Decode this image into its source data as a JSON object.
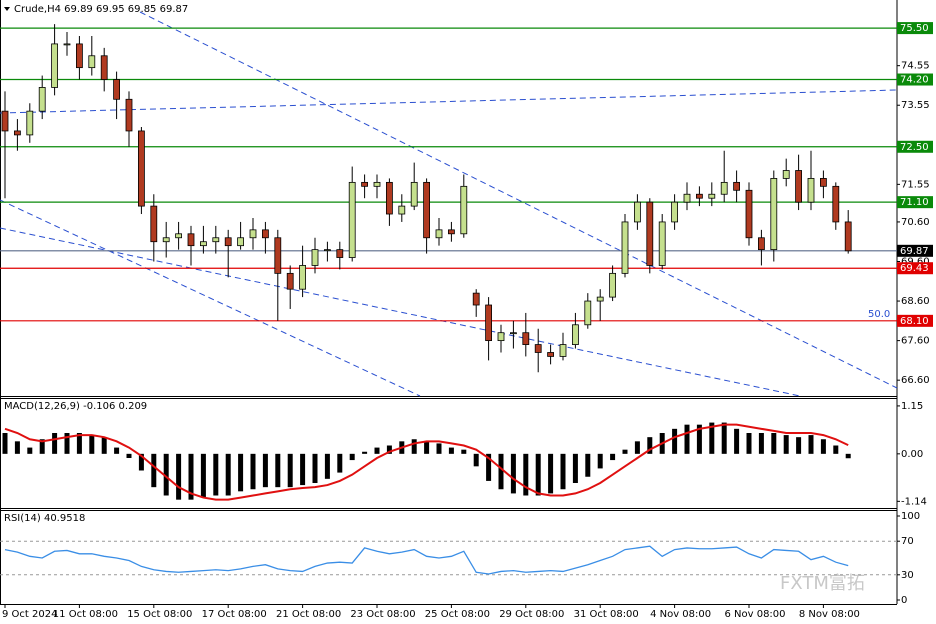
{
  "chart_data": [
    {
      "type": "candlestick",
      "title": "Crude,H4 69.89 69.95 69.85 69.87",
      "categories": [
        "9 Oct 2024",
        null,
        null,
        null,
        null,
        null,
        "11 Oct 08:00",
        null,
        null,
        null,
        null,
        null,
        "15 Oct 08:00",
        null,
        null,
        null,
        null,
        null,
        "17 Oct 08:00",
        null,
        null,
        null,
        null,
        null,
        "21 Oct 08:00",
        null,
        null,
        null,
        null,
        null,
        "23 Oct 08:00",
        null,
        null,
        null,
        null,
        null,
        "25 Oct 08:00",
        null,
        null,
        null,
        null,
        null,
        "29 Oct 08:00",
        null,
        null,
        null,
        null,
        null,
        "31 Oct 08:00",
        null,
        null,
        null,
        null,
        null,
        "4 Nov 08:00",
        null,
        null,
        null,
        null,
        null,
        "6 Nov 08:00",
        null,
        null,
        null,
        null,
        null,
        "8 Nov 08:00",
        null,
        null
      ],
      "open": [
        73.4,
        72.9,
        72.8,
        73.4,
        74.0,
        75.1,
        75.1,
        74.5,
        74.8,
        74.2,
        73.7,
        72.9,
        71.0,
        70.1,
        70.2,
        70.3,
        70.0,
        70.1,
        70.2,
        70.0,
        70.2,
        70.4,
        70.2,
        69.3,
        68.9,
        69.5,
        69.9,
        69.9,
        69.7,
        71.6,
        71.5,
        71.6,
        70.8,
        71.0,
        71.6,
        70.2,
        70.4,
        70.3,
        68.8,
        68.5,
        67.6,
        67.8,
        67.8,
        67.5,
        67.3,
        67.2,
        67.5,
        68.0,
        68.6,
        68.7,
        69.3,
        70.6,
        71.1,
        69.5,
        70.6,
        71.1,
        71.3,
        71.2,
        71.3,
        71.6,
        71.4,
        70.2,
        69.9,
        71.7,
        71.9,
        71.1,
        71.7,
        71.5,
        70.6
      ],
      "high": [
        73.9,
        73.2,
        73.6,
        74.3,
        75.6,
        75.4,
        75.3,
        75.3,
        75.0,
        74.4,
        73.9,
        73.0,
        71.3,
        70.6,
        70.6,
        70.5,
        70.5,
        70.5,
        70.4,
        70.6,
        70.7,
        70.6,
        70.4,
        69.5,
        70.0,
        70.2,
        70.1,
        70.1,
        72.0,
        71.8,
        71.8,
        71.7,
        71.3,
        72.1,
        71.7,
        70.7,
        70.6,
        71.8,
        68.9,
        68.7,
        68.0,
        68.1,
        68.3,
        67.9,
        67.5,
        67.8,
        68.3,
        68.8,
        68.9,
        69.5,
        70.8,
        71.3,
        71.2,
        70.8,
        71.3,
        71.6,
        71.5,
        71.6,
        72.4,
        71.9,
        71.6,
        70.4,
        71.9,
        72.2,
        72.3,
        72.4,
        71.9,
        71.6,
        70.9
      ],
      "low": [
        71.2,
        72.4,
        72.6,
        73.2,
        73.8,
        74.8,
        74.2,
        74.3,
        73.9,
        73.2,
        72.5,
        70.8,
        69.6,
        69.7,
        69.9,
        69.5,
        69.8,
        69.8,
        69.2,
        69.9,
        69.9,
        69.8,
        68.1,
        68.4,
        68.7,
        69.3,
        69.6,
        69.4,
        69.6,
        71.2,
        71.2,
        70.5,
        70.6,
        70.9,
        69.8,
        70.0,
        70.1,
        70.2,
        68.2,
        67.1,
        67.3,
        67.4,
        67.2,
        66.8,
        67.0,
        67.1,
        67.4,
        67.9,
        68.1,
        68.6,
        69.2,
        70.4,
        69.3,
        69.4,
        70.4,
        70.9,
        71.0,
        71.0,
        71.1,
        71.1,
        70.0,
        69.5,
        69.6,
        71.5,
        70.9,
        70.9,
        71.2,
        70.4,
        69.8
      ],
      "close": [
        72.9,
        72.8,
        73.4,
        74.0,
        75.1,
        75.1,
        74.5,
        74.8,
        74.2,
        73.7,
        72.9,
        71.0,
        70.1,
        70.2,
        70.3,
        70.0,
        70.1,
        70.2,
        70.0,
        70.2,
        70.4,
        70.2,
        69.3,
        68.9,
        69.5,
        69.9,
        69.9,
        69.7,
        71.6,
        71.5,
        71.6,
        70.8,
        71.0,
        71.6,
        70.2,
        70.4,
        70.3,
        71.5,
        68.5,
        67.6,
        67.8,
        67.8,
        67.5,
        67.3,
        67.2,
        67.5,
        68.0,
        68.6,
        68.7,
        69.3,
        70.6,
        71.1,
        69.5,
        70.6,
        71.1,
        71.3,
        71.2,
        71.3,
        71.6,
        71.4,
        70.2,
        69.9,
        71.7,
        71.9,
        71.1,
        71.7,
        71.5,
        70.6,
        69.87
      ],
      "up_color": "#c5e08e",
      "down_color": "#b03a20",
      "ylim": [
        66.2,
        76.21
      ],
      "yticks": [
        74.55,
        73.55,
        71.55,
        {
          "value": 70.6,
          "label": "70.60"
        },
        {
          "value": 69.6,
          "label": "69.60"
        },
        {
          "value": 68.6,
          "label": "68.60"
        },
        {
          "value": 67.6,
          "label": "67.60"
        },
        {
          "value": 66.6,
          "label": "66.60"
        }
      ],
      "levels": [
        {
          "value": 75.5,
          "label": "75.50",
          "color": "#0a8a0a"
        },
        {
          "value": 74.2,
          "label": "74.20",
          "color": "#0a8a0a"
        },
        {
          "value": 72.5,
          "label": "72.50",
          "color": "#0a8a0a"
        },
        {
          "value": 71.1,
          "label": "71.10",
          "color": "#0a8a0a"
        },
        {
          "value": 69.87,
          "label": "69.87",
          "color": "#000000"
        },
        {
          "value": 69.43,
          "label": "69.43",
          "color": "#e00000"
        },
        {
          "value": 68.1,
          "label": "68.10",
          "color": "#e00000"
        }
      ],
      "annotation": "50.0",
      "watermark": "FXTM富拓"
    },
    {
      "type": "macd",
      "title": "MACD(12,26,9) -0.106 0.209",
      "ylim": [
        -1.3,
        1.34
      ],
      "yticks": [
        1.15,
        {
          "value": 0,
          "label": "0.00"
        },
        -1.14
      ],
      "histogram": {
        "color": "#000000",
        "values": [
          0.5,
          0.3,
          0.15,
          0.35,
          0.5,
          0.5,
          0.5,
          0.45,
          0.4,
          0.15,
          -0.1,
          -0.4,
          -0.8,
          -1.0,
          -1.1,
          -1.1,
          -1.05,
          -1.0,
          -1.0,
          -0.9,
          -0.85,
          -0.8,
          -0.8,
          -0.8,
          -0.75,
          -0.7,
          -0.6,
          -0.45,
          -0.15,
          0.05,
          0.15,
          0.2,
          0.3,
          0.35,
          0.3,
          0.25,
          0.15,
          0.1,
          -0.3,
          -0.65,
          -0.85,
          -0.95,
          -1.0,
          -1.0,
          -0.95,
          -0.85,
          -0.7,
          -0.55,
          -0.35,
          -0.15,
          0.1,
          0.3,
          0.4,
          0.5,
          0.6,
          0.7,
          0.7,
          0.75,
          0.75,
          0.6,
          0.5,
          0.5,
          0.5,
          0.45,
          0.4,
          0.45,
          0.35,
          0.2,
          -0.106
        ]
      },
      "signal": {
        "color": "#e01010",
        "values": [
          0.6,
          0.5,
          0.35,
          0.3,
          0.35,
          0.4,
          0.45,
          0.45,
          0.4,
          0.3,
          0.15,
          -0.05,
          -0.3,
          -0.55,
          -0.8,
          -0.95,
          -1.05,
          -1.1,
          -1.1,
          -1.05,
          -1.0,
          -0.95,
          -0.9,
          -0.85,
          -0.82,
          -0.8,
          -0.75,
          -0.65,
          -0.5,
          -0.3,
          -0.1,
          0.05,
          0.15,
          0.25,
          0.3,
          0.3,
          0.25,
          0.2,
          0.1,
          -0.1,
          -0.35,
          -0.6,
          -0.8,
          -0.95,
          -1.0,
          -1.0,
          -0.95,
          -0.85,
          -0.7,
          -0.5,
          -0.3,
          -0.1,
          0.1,
          0.25,
          0.4,
          0.5,
          0.6,
          0.65,
          0.7,
          0.7,
          0.65,
          0.6,
          0.55,
          0.5,
          0.5,
          0.5,
          0.45,
          0.35,
          0.209
        ]
      }
    },
    {
      "type": "line",
      "title": "RSI(14) 40.9518",
      "color": "#3a8ee6",
      "ylim": [
        0,
        100
      ],
      "yticks": [
        100,
        70,
        30,
        0
      ],
      "values": [
        60,
        57,
        52,
        50,
        58,
        59,
        55,
        55,
        52,
        50,
        47,
        40,
        36,
        34,
        33,
        34,
        35,
        36,
        35,
        37,
        40,
        42,
        37,
        35,
        34,
        40,
        44,
        45,
        44,
        62,
        58,
        55,
        57,
        60,
        52,
        50,
        52,
        58,
        33,
        31,
        34,
        35,
        33,
        34,
        35,
        34,
        38,
        42,
        47,
        52,
        60,
        62,
        64,
        52,
        60,
        62,
        61,
        61,
        62,
        63,
        55,
        50,
        60,
        59,
        58,
        48,
        52,
        45,
        40.9518
      ]
    }
  ]
}
